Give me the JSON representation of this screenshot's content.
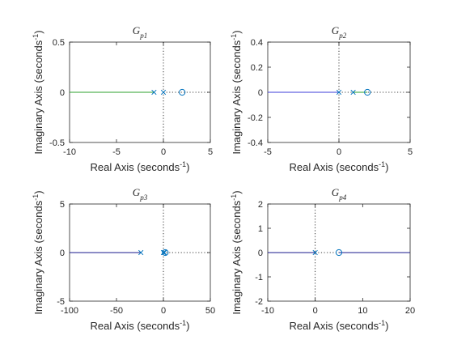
{
  "chart_data": [
    {
      "type": "root-locus",
      "title": "G",
      "title_sub": "p1",
      "xlabel": "Real Axis (seconds",
      "ylabel": "Imaginary Axis (seconds",
      "label_exp": "-1",
      "label_close": ")",
      "xlim": [
        -10,
        5
      ],
      "ylim": [
        -0.5,
        0.5
      ],
      "xticks": [
        -10,
        -5,
        0,
        5
      ],
      "yticks": [
        -0.5,
        0,
        0.5
      ],
      "locus": [
        {
          "x1": -10,
          "x2": -1,
          "color": "#2ca02c"
        }
      ],
      "poles": [
        -1,
        0
      ],
      "zeros": [
        2
      ],
      "dotted_h": [
        0,
        5
      ],
      "dotted_v": 0
    },
    {
      "type": "root-locus",
      "title": "G",
      "title_sub": "p2",
      "xlabel": "Real Axis (seconds",
      "ylabel": "Imaginary Axis (seconds",
      "label_exp": "-1",
      "label_close": ")",
      "xlim": [
        -5,
        5
      ],
      "ylim": [
        -0.4,
        0.4
      ],
      "xticks": [
        -5,
        0,
        5
      ],
      "yticks": [
        -0.4,
        -0.2,
        0,
        0.2,
        0.4
      ],
      "locus": [
        {
          "x1": -5,
          "x2": 0,
          "color": "#3c3cd8"
        },
        {
          "x1": 1,
          "x2": 2,
          "color": "#2ca02c"
        }
      ],
      "poles": [
        0,
        1
      ],
      "zeros": [
        2
      ],
      "dotted_h": [
        0,
        5
      ],
      "dotted_v": 0
    },
    {
      "type": "root-locus",
      "title": "G",
      "title_sub": "p3",
      "xlabel": "Real Axis (seconds",
      "ylabel": "Imaginary Axis (seconds",
      "label_exp": "-1",
      "label_close": ")",
      "xlim": [
        -100,
        50
      ],
      "ylim": [
        -5,
        5
      ],
      "xticks": [
        -100,
        -50,
        0,
        50
      ],
      "yticks": [
        -5,
        0,
        5
      ],
      "locus": [
        {
          "x1": -100,
          "x2": -24,
          "color": "#1a1a8c"
        }
      ],
      "poles": [
        -24,
        0,
        1
      ],
      "zeros": [
        2
      ],
      "dotted_h": [
        0,
        50
      ],
      "dotted_v": 0
    },
    {
      "type": "root-locus",
      "title": "G",
      "title_sub": "p4",
      "xlabel": "Real Axis (seconds",
      "ylabel": "Imaginary Axis (seconds",
      "label_exp": "-1",
      "label_close": ")",
      "xlim": [
        -10,
        20
      ],
      "ylim": [
        -2,
        2
      ],
      "xticks": [
        -10,
        0,
        10,
        20
      ],
      "yticks": [
        -2,
        -1,
        0,
        1,
        2
      ],
      "locus": [
        {
          "x1": -10,
          "x2": 0,
          "color": "#1a1a8c"
        },
        {
          "x1": 5,
          "x2": 20,
          "color": "#1a1a8c"
        }
      ],
      "poles": [
        0
      ],
      "zeros": [
        5
      ],
      "dotted_h": [
        0,
        5
      ],
      "dotted_v": 0
    }
  ],
  "colors": {
    "axes": "#262626",
    "pole_marker": "#0072bd",
    "zero_marker": "#0072bd",
    "dotted": "#000000"
  }
}
